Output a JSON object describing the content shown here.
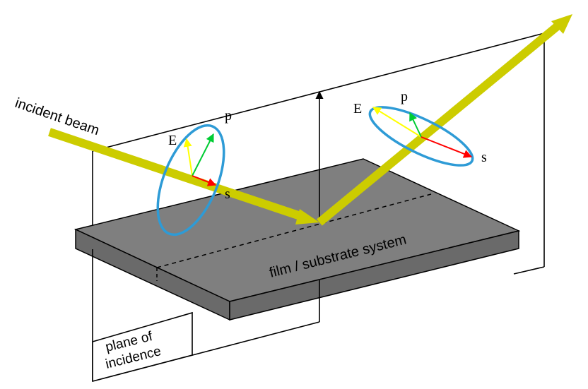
{
  "labels": {
    "incident_beam": "incident beam",
    "film_substrate": "film / substrate system",
    "plane_of_incidence_line1": "plane of",
    "plane_of_incidence_line2": "incidence",
    "incident_E": "E",
    "incident_p": "p",
    "incident_s": "s",
    "reflected_E": "E",
    "reflected_p": "p",
    "reflected_s": "s"
  },
  "colors": {
    "beam": "#cccc00",
    "slab_top": "#7f7f7f",
    "slab_side": "#6a6a6a",
    "ellipse": "#2e9bd6",
    "vector_E": "#ffff00",
    "vector_p": "#00cc33",
    "vector_s": "#ff0000",
    "outline": "#000000"
  }
}
